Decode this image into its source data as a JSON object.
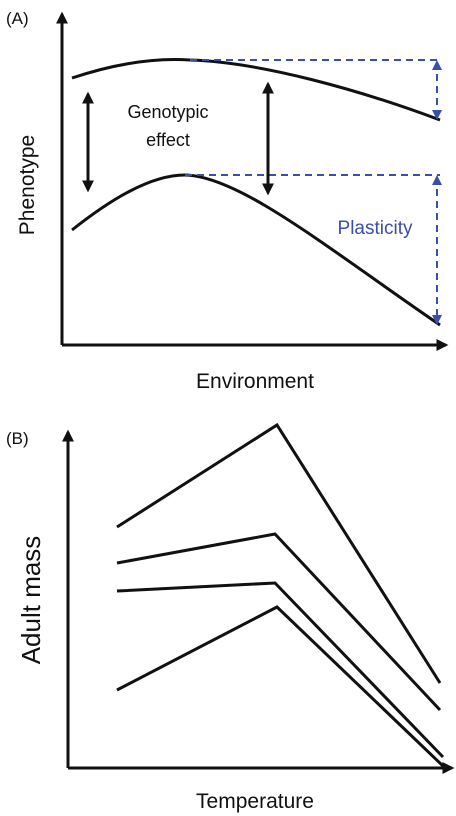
{
  "panel_a": {
    "label": "(A)",
    "y_label": "Phenotype",
    "x_label": "Environment",
    "annotation_genotypic": [
      "Genotypic",
      "effect"
    ],
    "annotation_plasticity": "Plasticity"
  },
  "panel_b": {
    "label": "(B)",
    "y_label": "Adult mass",
    "x_label": "Temperature"
  }
}
